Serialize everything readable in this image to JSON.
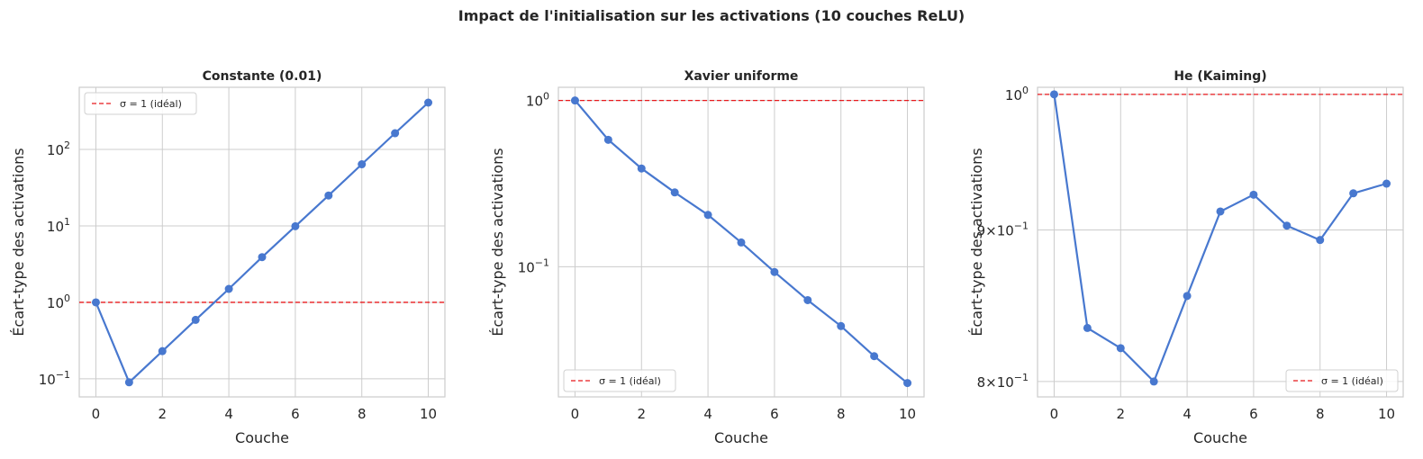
{
  "figure": {
    "title": "Impact de l'initialisation sur les activations (10 couches ReLU)"
  },
  "style": {
    "line_color": "#4878CF",
    "ref_color": "#E8191C",
    "grid_color": "#cccccc",
    "spine_color": "#cccccc"
  },
  "chart_data": [
    {
      "type": "line",
      "title": "Constante (0.01)",
      "xlabel": "Couche",
      "ylabel": "Écart-type des activations",
      "yscale": "log",
      "xlim": [
        -0.5,
        10.5
      ],
      "ylim": [
        0.058,
        650
      ],
      "xticks": [
        0,
        2,
        4,
        6,
        8,
        10
      ],
      "xtick_labels": [
        "0",
        "2",
        "4",
        "6",
        "8",
        "10"
      ],
      "yticks": [
        0.1,
        1,
        10,
        100
      ],
      "ytick_labels": [
        {
          "base": "10",
          "exp": "−1"
        },
        {
          "base": "10",
          "exp": "0"
        },
        {
          "base": "10",
          "exp": "1"
        },
        {
          "base": "10",
          "exp": "2"
        }
      ],
      "grid": true,
      "legend_position": "upper left",
      "series": [
        {
          "x": [
            0,
            1,
            2,
            3,
            4,
            5,
            6,
            7,
            8,
            9,
            10
          ],
          "y": [
            1.0,
            0.09,
            0.23,
            0.59,
            1.5,
            3.9,
            9.9,
            25,
            64,
            163,
            410
          ]
        }
      ],
      "reference_line": {
        "y": 1,
        "label": "σ = 1 (idéal)"
      }
    },
    {
      "type": "line",
      "title": "Xavier uniforme",
      "xlabel": "Couche",
      "ylabel": "Écart-type des activations",
      "yscale": "log",
      "xlim": [
        -0.5,
        10.5
      ],
      "ylim": [
        0.0165,
        1.2
      ],
      "xticks": [
        0,
        2,
        4,
        6,
        8,
        10
      ],
      "xtick_labels": [
        "0",
        "2",
        "4",
        "6",
        "8",
        "10"
      ],
      "yticks": [
        0.1,
        1
      ],
      "ytick_labels": [
        {
          "base": "10",
          "exp": "−1"
        },
        {
          "base": "10",
          "exp": "0"
        }
      ],
      "grid": true,
      "legend_position": "lower left",
      "series": [
        {
          "x": [
            0,
            1,
            2,
            3,
            4,
            5,
            6,
            7,
            8,
            9,
            10
          ],
          "y": [
            1.0,
            0.58,
            0.39,
            0.28,
            0.205,
            0.14,
            0.093,
            0.063,
            0.044,
            0.029,
            0.02
          ]
        }
      ],
      "reference_line": {
        "y": 1,
        "label": "σ = 1 (idéal)"
      }
    },
    {
      "type": "line",
      "title": "He (Kaiming)",
      "xlabel": "Couche",
      "ylabel": "Écart-type des activations",
      "yscale": "log",
      "xlim": [
        -0.5,
        10.5
      ],
      "ylim": [
        0.7905,
        1.0055
      ],
      "xticks": [
        0,
        2,
        4,
        6,
        8,
        10
      ],
      "xtick_labels": [
        "0",
        "2",
        "4",
        "6",
        "8",
        "10"
      ],
      "yticks": [
        0.8,
        0.9,
        1.0
      ],
      "ytick_labels": [
        {
          "base": "8×10",
          "exp": "−1"
        },
        {
          "base": "9×10",
          "exp": "−1"
        },
        {
          "base": "10",
          "exp": "0"
        }
      ],
      "grid": true,
      "legend_position": "lower right",
      "series": [
        {
          "x": [
            0,
            1,
            2,
            3,
            4,
            5,
            6,
            7,
            8,
            9,
            10
          ],
          "y": [
            1.0,
            0.834,
            0.821,
            0.8,
            0.855,
            0.913,
            0.925,
            0.903,
            0.893,
            0.926,
            0.933
          ]
        }
      ],
      "reference_line": {
        "y": 1,
        "label": "σ = 1 (idéal)"
      }
    }
  ]
}
